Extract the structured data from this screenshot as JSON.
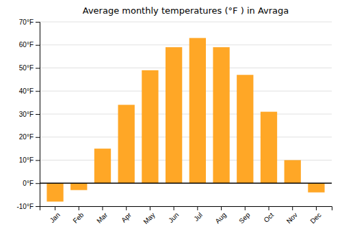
{
  "chart_data": {
    "type": "bar",
    "title": "Average monthly temperatures (°F ) in Avraga",
    "categories": [
      "Jan",
      "Feb",
      "Mar",
      "Apr",
      "May",
      "Jun",
      "Jul",
      "Aug",
      "Sep",
      "Oct",
      "Nov",
      "Dec"
    ],
    "values": [
      -8,
      -3,
      15,
      34,
      49,
      59,
      63,
      59,
      47,
      31,
      10,
      -4
    ],
    "color": "#FFA726",
    "ylim": [
      -10,
      70
    ],
    "yticks": [
      {
        "value": -10,
        "label": "-10°F"
      },
      {
        "value": 0,
        "label": "0°F"
      },
      {
        "value": 10,
        "label": "10°F"
      },
      {
        "value": 20,
        "label": "20°F"
      },
      {
        "value": 30,
        "label": "30°F"
      },
      {
        "value": 40,
        "label": "40°F"
      },
      {
        "value": 50,
        "label": "50°F"
      },
      {
        "value": 60,
        "label": "60°F"
      },
      {
        "value": 70,
        "label": "70°F"
      }
    ],
    "grid": true
  }
}
